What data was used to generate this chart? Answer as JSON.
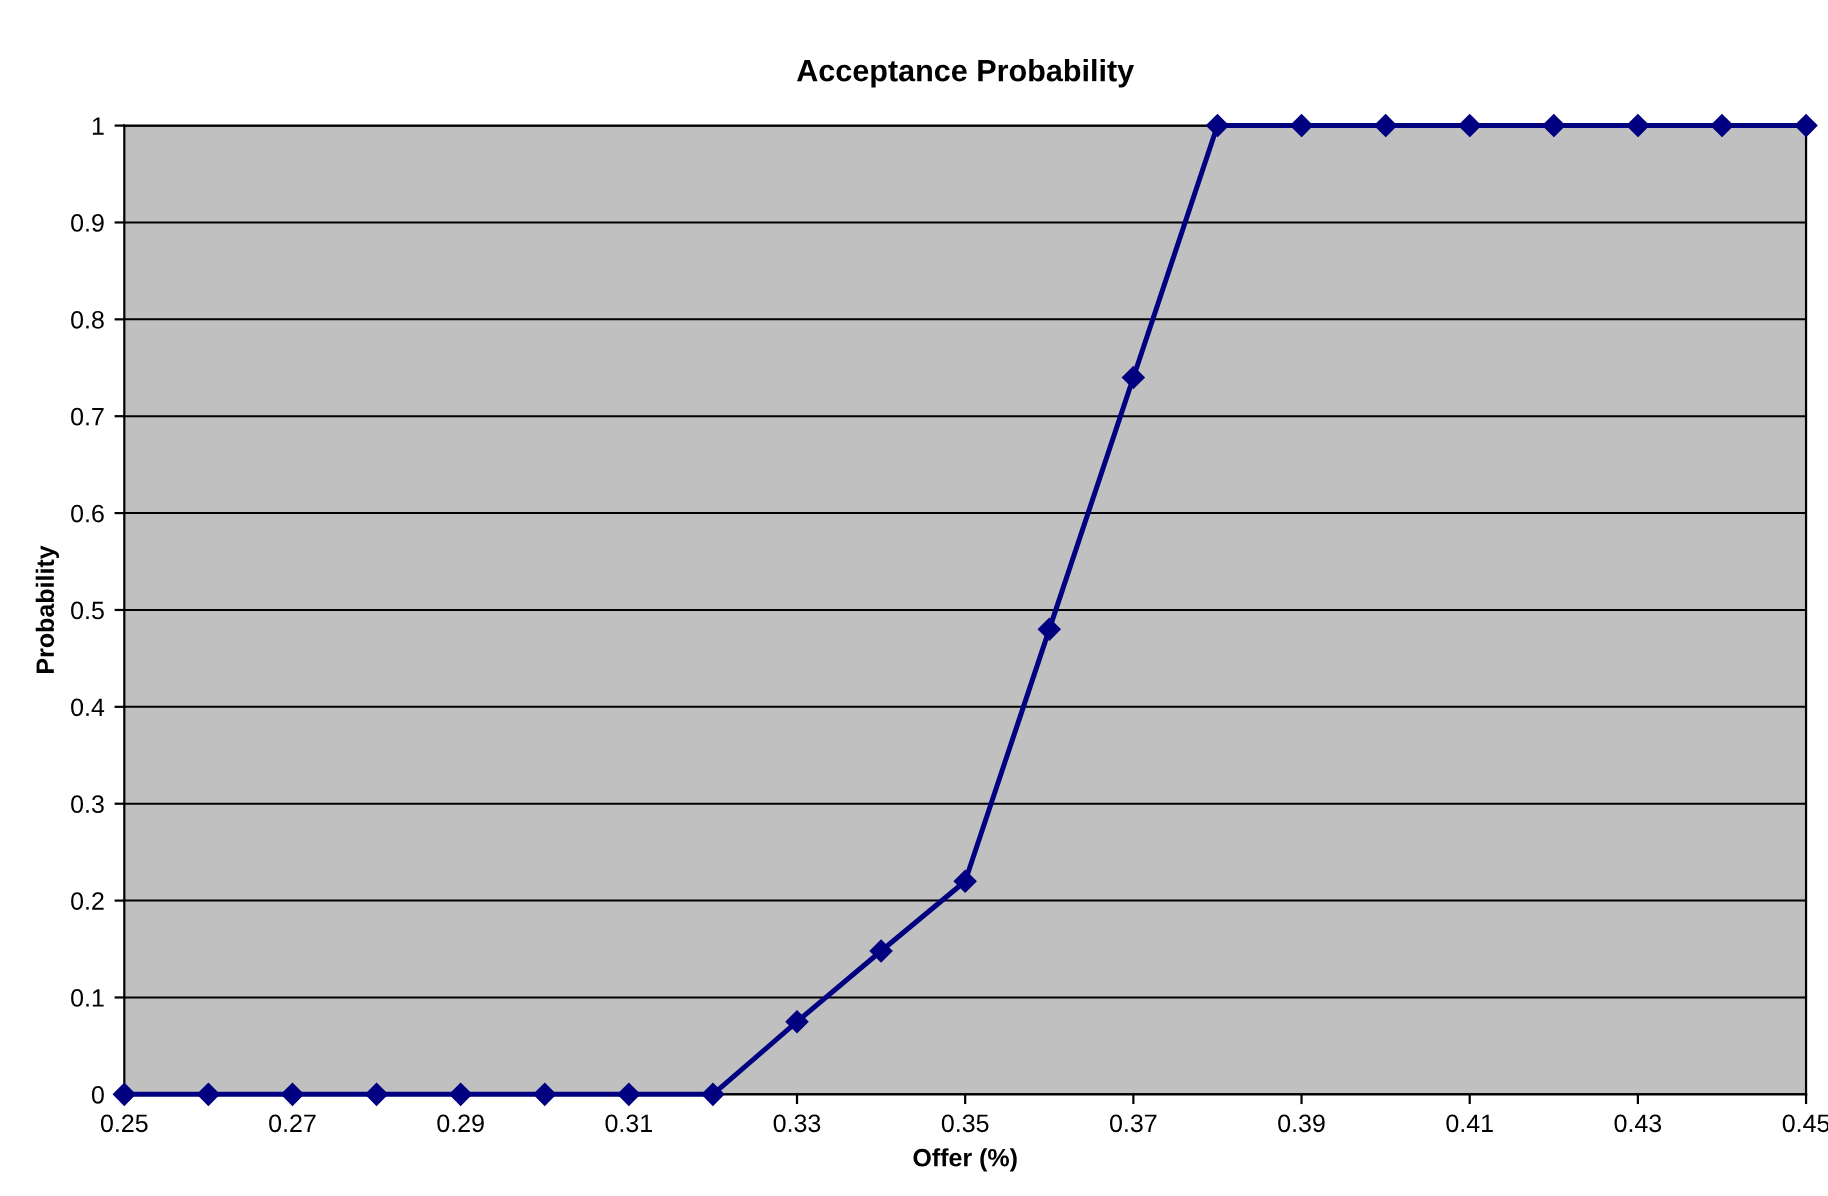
{
  "chart_data": {
    "type": "line",
    "title": "Acceptance Probability",
    "xlabel": "Offer (%)",
    "ylabel": "Probability",
    "x": [
      0.25,
      0.26,
      0.27,
      0.28,
      0.29,
      0.3,
      0.31,
      0.32,
      0.33,
      0.34,
      0.35,
      0.36,
      0.37,
      0.38,
      0.39,
      0.4,
      0.41,
      0.42,
      0.43,
      0.44,
      0.45
    ],
    "series": [
      {
        "color": "#000080",
        "values": [
          0,
          0,
          0,
          0,
          0,
          0,
          0,
          0,
          0.075,
          0.148,
          0.22,
          0.48,
          0.74,
          1,
          1,
          1,
          1,
          1,
          1,
          1,
          1
        ]
      }
    ],
    "xlim": [
      0.25,
      0.45
    ],
    "xticks": [
      0.25,
      0.27,
      0.29,
      0.31,
      0.33,
      0.35,
      0.37,
      0.39,
      0.41,
      0.43,
      0.45
    ],
    "ylim": [
      0,
      1
    ],
    "yticks": [
      0,
      0.1,
      0.2,
      0.3,
      0.4,
      0.5,
      0.6,
      0.7,
      0.8,
      0.9,
      1
    ],
    "grid": "y",
    "marker": "diamond",
    "line_style": "solid"
  }
}
